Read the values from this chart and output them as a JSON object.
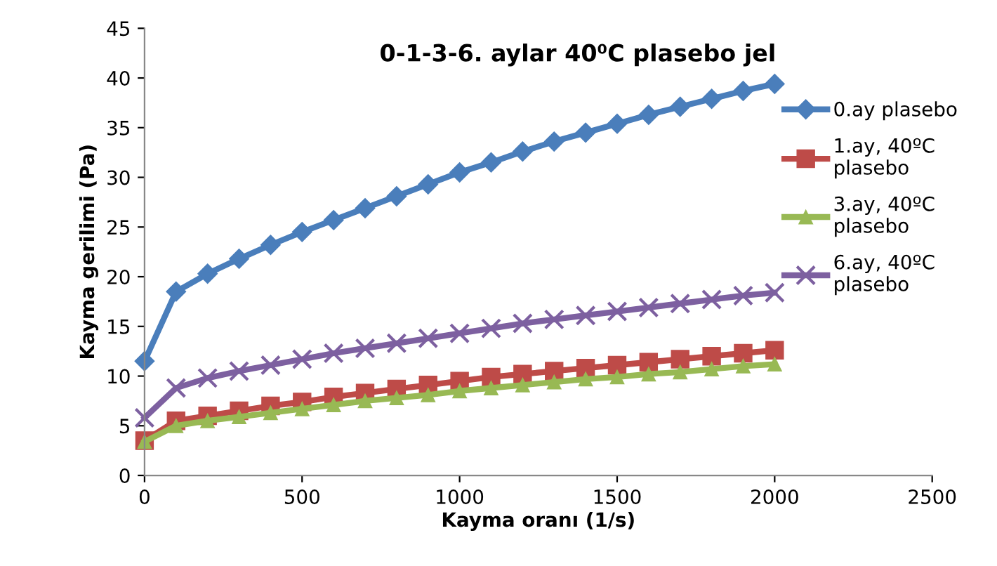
{
  "chart_data": {
    "type": "line",
    "title": "0-1-3-6. aylar 40⁰C plasebo jel",
    "xlabel": "Kayma oranı (1/s)",
    "ylabel": "Kayma gerilimi (Pa)",
    "x": [
      0,
      100,
      200,
      300,
      400,
      500,
      600,
      700,
      800,
      900,
      1000,
      1100,
      1200,
      1300,
      1400,
      1500,
      1600,
      1700,
      1800,
      1900,
      2000
    ],
    "series": [
      {
        "name": "0.ay plasebo",
        "color": "#4a7ebb",
        "marker": "diamond",
        "values": [
          11.5,
          18.5,
          20.3,
          21.8,
          23.2,
          24.5,
          25.7,
          26.9,
          28.1,
          29.3,
          30.5,
          31.5,
          32.6,
          33.6,
          34.5,
          35.4,
          36.3,
          37.1,
          37.9,
          38.7,
          39.4
        ]
      },
      {
        "name": "1.ay, 40ºC plasebo",
        "color": "#be4b48",
        "marker": "square",
        "values": [
          3.5,
          5.5,
          6.0,
          6.5,
          7.0,
          7.4,
          7.9,
          8.3,
          8.7,
          9.1,
          9.5,
          9.9,
          10.2,
          10.5,
          10.8,
          11.1,
          11.4,
          11.7,
          12.0,
          12.3,
          12.6
        ]
      },
      {
        "name": "3.ay, 40ºC plasebo",
        "color": "#98b954",
        "marker": "triangle",
        "values": [
          3.4,
          5.0,
          5.5,
          5.9,
          6.3,
          6.7,
          7.1,
          7.5,
          7.8,
          8.1,
          8.5,
          8.8,
          9.1,
          9.4,
          9.7,
          9.9,
          10.2,
          10.4,
          10.7,
          11.0,
          11.2
        ]
      },
      {
        "name": "6.ay, 40ºC plasebo",
        "color": "#7d60a0",
        "marker": "cross",
        "values": [
          5.8,
          8.8,
          9.8,
          10.5,
          11.1,
          11.7,
          12.3,
          12.8,
          13.3,
          13.8,
          14.3,
          14.8,
          15.3,
          15.7,
          16.1,
          16.5,
          16.9,
          17.3,
          17.7,
          18.1,
          18.4
        ]
      }
    ],
    "xlim": [
      0,
      2500
    ],
    "xticks": [
      0,
      500,
      1000,
      1500,
      2000,
      2500
    ],
    "ylim": [
      0,
      45
    ],
    "yticks": [
      0,
      5,
      10,
      15,
      20,
      25,
      30,
      35,
      40,
      45
    ],
    "grid": false,
    "legend": "right",
    "line_style": "solid"
  }
}
